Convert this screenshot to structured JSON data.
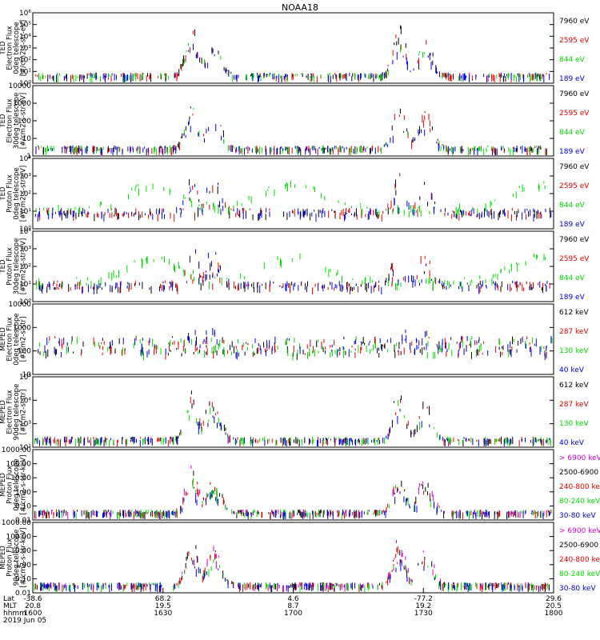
{
  "title": "NOAA18",
  "colors": {
    "black": "#000000",
    "red": "#e00000",
    "green": "#00dd00",
    "blue": "#0000dd",
    "magenta": "#d000d0"
  },
  "footer": {
    "row_labels": [
      "Lat",
      "MLT",
      "hhmm",
      "2019 Jun 05"
    ],
    "ticks": [
      {
        "lat": "-38.6",
        "mlt": "20.8",
        "hhmm": "1600"
      },
      {
        "lat": "68.2",
        "mlt": "19.5",
        "hhmm": "1630"
      },
      {
        "lat": "4.6",
        "mlt": "8.7",
        "hhmm": "1700"
      },
      {
        "lat": "-77.2",
        "mlt": "19.2",
        "hhmm": "1730"
      },
      {
        "lat": "29.6",
        "mlt": "20.5",
        "hhmm": "1800"
      }
    ]
  },
  "chart_data": [
    {
      "type": "scatter",
      "ylabel": [
        "TED",
        "Electron Flux",
        "0deg telescope",
        "[#/cm2-s-str-eV]"
      ],
      "ylog": true,
      "ylim": [
        1,
        1000000
      ],
      "yticks": [
        "10⁰",
        "10¹",
        "10²",
        "10³",
        "10⁴",
        "10⁵",
        "10⁶"
      ],
      "legend": [
        "7960 eV",
        "2595 eV",
        "844 eV",
        "189 eV"
      ],
      "series": [
        {
          "name": "7960 eV",
          "color": "black"
        },
        {
          "name": "2595 eV",
          "color": "red"
        },
        {
          "name": "844 eV",
          "color": "green"
        },
        {
          "name": "189 eV",
          "color": "blue"
        }
      ],
      "x_range_hhmm": [
        "1600",
        "1800"
      ]
    },
    {
      "type": "scatter",
      "ylabel": [
        "TED",
        "Electron Flux",
        "30deg telescope",
        "[#/cm2-s-str-eV]"
      ],
      "ylog": true,
      "ylim": [
        1,
        10000
      ],
      "yticks": [
        "1",
        "10",
        "100",
        "1000",
        "10000"
      ],
      "legend": [
        "7960 eV",
        "2595 eV",
        "844 eV",
        "189 eV"
      ],
      "series": [
        {
          "name": "7960 eV",
          "color": "black"
        },
        {
          "name": "2595 eV",
          "color": "red"
        },
        {
          "name": "844 eV",
          "color": "green"
        },
        {
          "name": "189 eV",
          "color": "blue"
        }
      ],
      "x_range_hhmm": [
        "1600",
        "1800"
      ]
    },
    {
      "type": "scatter",
      "ylabel": [
        "TED",
        "Proton Flux",
        "0deg telescope",
        "[#/cm2-s-str-eV]"
      ],
      "ylog": true,
      "ylim": [
        1,
        10000
      ],
      "yticks": [
        "10⁰",
        "10¹",
        "10²",
        "10³",
        "10⁴"
      ],
      "legend": [
        "7960 eV",
        "2595 eV",
        "844 eV",
        "189 eV"
      ],
      "series": [
        {
          "name": "7960 eV",
          "color": "black"
        },
        {
          "name": "2595 eV",
          "color": "red"
        },
        {
          "name": "844 eV",
          "color": "green"
        },
        {
          "name": "189 eV",
          "color": "blue"
        }
      ],
      "x_range_hhmm": [
        "1600",
        "1800"
      ]
    },
    {
      "type": "scatter",
      "ylabel": [
        "TED",
        "Proton Flux",
        "30deg telescope",
        "[#/cm2-s-str-eV]"
      ],
      "ylog": true,
      "ylim": [
        1,
        10000
      ],
      "yticks": [
        "10⁰",
        "10¹",
        "10²",
        "10³",
        "10⁴"
      ],
      "legend": [
        "7960 eV",
        "2595 eV",
        "844 eV",
        "189 eV"
      ],
      "series": [
        {
          "name": "7960 eV",
          "color": "black"
        },
        {
          "name": "2595 eV",
          "color": "red"
        },
        {
          "name": "844 eV",
          "color": "green"
        },
        {
          "name": "189 eV",
          "color": "blue"
        }
      ],
      "x_range_hhmm": [
        "1600",
        "1800"
      ]
    },
    {
      "type": "scatter",
      "ylabel": [
        "MEPED",
        "Electron Flux",
        "0deg telescope",
        "[#/cm2-s-str]"
      ],
      "ylog": true,
      "ylim": [
        10,
        10000
      ],
      "yticks": [
        "10",
        "100",
        "1000",
        "10000"
      ],
      "legend": [
        "612 keV",
        "287 keV",
        "130 keV",
        "40 keV"
      ],
      "series": [
        {
          "name": "612 keV",
          "color": "black"
        },
        {
          "name": "287 keV",
          "color": "red"
        },
        {
          "name": "130 keV",
          "color": "green"
        },
        {
          "name": "40 keV",
          "color": "blue"
        }
      ],
      "x_range_hhmm": [
        "1600",
        "1800"
      ]
    },
    {
      "type": "scatter",
      "ylabel": [
        "MEPED",
        "Electron Flux",
        "90deg telescope",
        "[#/cm2-s-str]"
      ],
      "ylog": true,
      "ylim": [
        10,
        1000000
      ],
      "yticks": [
        "10²",
        "10³",
        "10⁴",
        "10⁵"
      ],
      "legend": [
        "612 keV",
        "287 keV",
        "130 keV",
        "40 keV"
      ],
      "series": [
        {
          "name": "612 keV",
          "color": "black"
        },
        {
          "name": "287 keV",
          "color": "red"
        },
        {
          "name": "130 keV",
          "color": "green"
        },
        {
          "name": "40 keV",
          "color": "blue"
        }
      ],
      "x_range_hhmm": [
        "1600",
        "1800"
      ]
    },
    {
      "type": "scatter",
      "ylabel": [
        "MEPED",
        "Proton Flux",
        "0deg telescope",
        "[#/cm2-s-str-keV]"
      ],
      "ylog": true,
      "ylim": [
        0.01,
        1000
      ],
      "yticks": [
        "0.01",
        "0.10",
        "1.00",
        "10.00",
        "100.00",
        "1000.00"
      ],
      "legend": [
        "> 6900 keV",
        "2500-6900",
        "240-800 keV",
        "80-240 keV",
        "30-80 keV"
      ],
      "series": [
        {
          "name": "> 6900 keV",
          "color": "magenta"
        },
        {
          "name": "2500-6900",
          "color": "black"
        },
        {
          "name": "240-800 keV",
          "color": "red"
        },
        {
          "name": "80-240 keV",
          "color": "green"
        },
        {
          "name": "30-80 keV",
          "color": "blue"
        }
      ],
      "x_range_hhmm": [
        "1600",
        "1800"
      ]
    },
    {
      "type": "scatter",
      "ylabel": [
        "MEPED",
        "Proton Flux",
        "90deg telescope",
        "[#/cm2-s-str-keV]"
      ],
      "ylog": true,
      "ylim": [
        0.01,
        1000
      ],
      "yticks": [
        "0.01",
        "0.10",
        "1.00",
        "10.00",
        "100.00",
        "1000.00"
      ],
      "legend": [
        "> 6900 keV",
        "2500-6900",
        "240-800 keV",
        "80-240 keV",
        "30-80 keV"
      ],
      "series": [
        {
          "name": "> 6900 keV",
          "color": "magenta"
        },
        {
          "name": "2500-6900",
          "color": "black"
        },
        {
          "name": "240-800 keV",
          "color": "red"
        },
        {
          "name": "80-240 keV",
          "color": "green"
        },
        {
          "name": "30-80 keV",
          "color": "blue"
        }
      ],
      "x_range_hhmm": [
        "1600",
        "1800"
      ]
    }
  ]
}
